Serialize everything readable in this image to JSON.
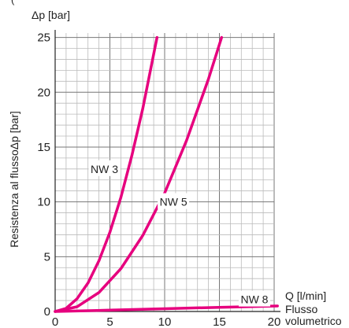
{
  "top_fragment": "(",
  "chart_data": {
    "type": "line",
    "title": "",
    "ylabel": "Resistenza al flussoΔp [bar]",
    "y_axis_title": "Δp [bar]",
    "x_axis_unit": "Q [l/min]",
    "xlabel_line1": "Flusso",
    "xlabel_line2": "volumetrico",
    "xlim": [
      0,
      20
    ],
    "ylim": [
      0,
      25
    ],
    "x_ticks": [
      0,
      5,
      10,
      15,
      20
    ],
    "y_ticks": [
      0,
      5,
      10,
      15,
      20,
      25
    ],
    "grid": true,
    "series": [
      {
        "name": "NW 3",
        "color": "#e6007e",
        "x": [
          0,
          1,
          2,
          3,
          4,
          5,
          6,
          7,
          8,
          9.3
        ],
        "y": [
          0,
          0.29,
          1.16,
          2.6,
          4.63,
          7.23,
          10.4,
          14.2,
          18.5,
          25
        ]
      },
      {
        "name": "NW 5",
        "color": "#e6007e",
        "x": [
          0,
          2,
          4,
          6,
          8,
          10,
          12,
          14,
          15.2
        ],
        "y": [
          0,
          0.43,
          1.73,
          3.9,
          6.93,
          10.8,
          15.6,
          21.2,
          25
        ]
      },
      {
        "name": "NW 8",
        "color": "#e6007e",
        "x": [
          0,
          5,
          10,
          15,
          20.3
        ],
        "y": [
          0,
          0.12,
          0.25,
          0.38,
          0.5
        ]
      }
    ],
    "series_labels": [
      {
        "text": "NW 3",
        "x": 4.5,
        "y": 13
      },
      {
        "text": "NW 5",
        "x": 10.8,
        "y": 10
      },
      {
        "text": "NW 8",
        "x": 18.2,
        "y": 1.1
      }
    ]
  }
}
